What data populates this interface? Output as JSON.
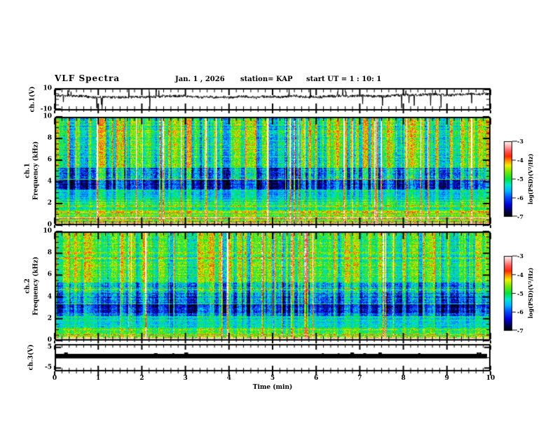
{
  "header": {
    "title": "VLF Spectra",
    "date": "Jan. 1 , 2026",
    "station": "station= KAP",
    "start_ut": "start UT =  1 : 10: 1"
  },
  "x_axis": {
    "label": "Time (min)",
    "tick_labels": [
      "0",
      "1",
      "2",
      "3",
      "4",
      "5",
      "6",
      "7",
      "8",
      "9",
      "10"
    ],
    "minor_per_major": 5,
    "range_min": [
      0,
      10
    ]
  },
  "panels": {
    "wave1": {
      "ylabel": "ch.1(V)",
      "ytick_labels": [
        "10",
        "-10"
      ],
      "ylim": [
        -10,
        10
      ]
    },
    "spec1": {
      "ylabel_channel": "ch.1",
      "ylabel_axis": "Frequency (kHz)",
      "ytick_labels": [
        "10",
        "8",
        "6",
        "4",
        "2",
        "0"
      ],
      "ylim": [
        0,
        10
      ]
    },
    "spec2": {
      "ylabel_channel": "ch.2",
      "ylabel_axis": "Frequency (kHz)",
      "ytick_labels": [
        "10",
        "8",
        "6",
        "4",
        "2",
        "0"
      ],
      "ylim": [
        0,
        10
      ]
    },
    "wave3": {
      "ylabel": "ch.3(V)",
      "ytick_labels": [
        "5",
        "-5"
      ],
      "ylim": [
        -6.6,
        6.6
      ]
    }
  },
  "colorbar": {
    "label": "log(PSD)(V²/Hz)",
    "tick_labels": [
      "-3",
      "-4",
      "-5",
      "-6",
      "-7"
    ],
    "value_range": [
      -7,
      -3
    ],
    "stops": [
      [
        0.0,
        "#000000"
      ],
      [
        0.07,
        "#00004a"
      ],
      [
        0.16,
        "#0000e0"
      ],
      [
        0.26,
        "#0050ff"
      ],
      [
        0.34,
        "#00b4ff"
      ],
      [
        0.42,
        "#00e8d0"
      ],
      [
        0.5,
        "#00e23c"
      ],
      [
        0.6,
        "#7ce800"
      ],
      [
        0.68,
        "#f0f000"
      ],
      [
        0.74,
        "#ff9000"
      ],
      [
        0.8,
        "#ff2800"
      ],
      [
        0.87,
        "#ff5a5a"
      ],
      [
        0.94,
        "#ffb4b4"
      ],
      [
        1.0,
        "#ffffff"
      ]
    ]
  },
  "chart_data": [
    {
      "id": "ch1_waveform",
      "type": "line",
      "title": "",
      "xlabel": "Time (min)",
      "ylabel": "ch.1(V)",
      "xlim": [
        0,
        10
      ],
      "ylim": [
        -10,
        10
      ],
      "description": "Noisy channel-1 amplitude trace fluctuating around +2..+5 V with impulsive spikes reaching -9 and +10 V",
      "render": {
        "seed": 11,
        "n": 1244,
        "mean": 3.1,
        "wander": 0.35,
        "base_min": 1.6,
        "base_max": 5.0,
        "jitter": 1.2,
        "spike_rate": 0.012,
        "spike_lo": -9.0,
        "spike_hi": -1.5,
        "upspike_rate": 0.005,
        "upspike_lo": 6.5,
        "upspike_hi": 9.8
      }
    },
    {
      "id": "ch1_spectrogram",
      "type": "heatmap",
      "xlabel": "Time (min)",
      "ylabel": "ch.1 Frequency (kHz)",
      "zlabel": "log(PSD)(V²/Hz)",
      "xlim": [
        0,
        10
      ],
      "ylim": [
        0,
        10
      ],
      "zlim": [
        -7,
        -3
      ],
      "description": "VLF spectrogram: green background ~-5 with dense red/orange vertical impulses above 5 kHz, dark-blue quiet band 3.2-4.2 kHz, striped blue/green 4.2-5.3 kHz, cyan-green 2-3 kHz, layered red/orange horizontal hiss lines below 1.5 kHz",
      "render": {
        "seed": 101,
        "bands": [
          [
            0.0,
            0.18,
            -4.15,
            0.35,
            0.3
          ],
          [
            0.18,
            0.5,
            -4.75,
            0.45,
            0.3
          ],
          [
            0.5,
            0.72,
            -4.2,
            0.3,
            0.3
          ],
          [
            0.72,
            1.05,
            -4.85,
            0.4,
            0.35
          ],
          [
            1.05,
            1.4,
            -4.55,
            0.4,
            0.4
          ],
          [
            1.4,
            2.15,
            -5.05,
            0.4,
            0.45
          ],
          [
            2.15,
            3.25,
            -5.4,
            0.35,
            0.5
          ],
          [
            3.25,
            4.2,
            -6.3,
            0.45,
            0.85
          ],
          [
            4.2,
            5.3,
            -5.75,
            0.55,
            1.0
          ],
          [
            5.3,
            10.0,
            -5.0,
            0.45,
            1.0
          ]
        ],
        "hlines": [
          [
            0.06,
            1.7,
            2
          ],
          [
            0.3,
            1.0,
            1
          ],
          [
            0.58,
            1.3,
            2
          ],
          [
            0.9,
            0.8,
            1
          ],
          [
            1.2,
            0.6,
            2
          ],
          [
            1.75,
            0.5,
            1
          ],
          [
            2.3,
            0.45,
            1
          ],
          [
            4.25,
            1.2,
            1
          ]
        ],
        "vlines": {
          "count": 26,
          "amp_lo": 1.5,
          "amp_hi": 2.6
        }
      }
    },
    {
      "id": "ch2_spectrogram",
      "type": "heatmap",
      "xlabel": "Time (min)",
      "ylabel": "ch.2 Frequency (kHz)",
      "zlabel": "log(PSD)(V²/Hz)",
      "xlim": [
        0,
        10
      ],
      "ylim": [
        0,
        10
      ],
      "zlim": [
        -7,
        -3
      ],
      "description": "Similar to ch.1 but slightly quieter: dark-blue band 2.5-3.3 kHz, blue/green stripes 3.3-5.3 kHz, yellow horizontal banding near 7.5-8 kHz, hot red/white hiss lines at the very bottom",
      "render": {
        "seed": 202,
        "bands": [
          [
            0.0,
            0.15,
            -3.9,
            0.35,
            0.25
          ],
          [
            0.15,
            0.45,
            -4.7,
            0.4,
            0.3
          ],
          [
            0.45,
            1.15,
            -4.9,
            0.45,
            0.4
          ],
          [
            1.15,
            2.2,
            -5.35,
            0.35,
            0.35
          ],
          [
            2.2,
            2.5,
            -5.9,
            0.5,
            0.7
          ],
          [
            2.5,
            3.35,
            -6.35,
            0.45,
            0.85
          ],
          [
            3.35,
            4.35,
            -5.95,
            0.55,
            0.9
          ],
          [
            4.35,
            5.35,
            -5.55,
            0.55,
            0.9
          ],
          [
            5.35,
            10.0,
            -4.95,
            0.45,
            0.8
          ]
        ],
        "hlines": [
          [
            0.05,
            1.9,
            2
          ],
          [
            0.26,
            1.3,
            1
          ],
          [
            0.5,
            0.9,
            1
          ],
          [
            1.0,
            0.5,
            1
          ],
          [
            3.4,
            1.1,
            1
          ],
          [
            4.75,
            0.9,
            1
          ],
          [
            6.9,
            0.4,
            2
          ],
          [
            7.6,
            0.55,
            3
          ],
          [
            8.05,
            0.45,
            2
          ]
        ],
        "vlines": {
          "count": 20,
          "amp_lo": 1.4,
          "amp_hi": 2.4
        }
      }
    },
    {
      "id": "ch3_waveform",
      "type": "line",
      "xlabel": "Time (min)",
      "ylabel": "ch.3(V)",
      "xlim": [
        0,
        10
      ],
      "ylim": [
        -6.6,
        6.6
      ],
      "description": "Flat saturated trace: solid black bar spanning the full record",
      "bar": {
        "x0": 0.0,
        "x1": 9.92,
        "y0": -0.34,
        "y1": 1.86
      },
      "render": {
        "seed": 5,
        "bumps": 12
      }
    }
  ]
}
